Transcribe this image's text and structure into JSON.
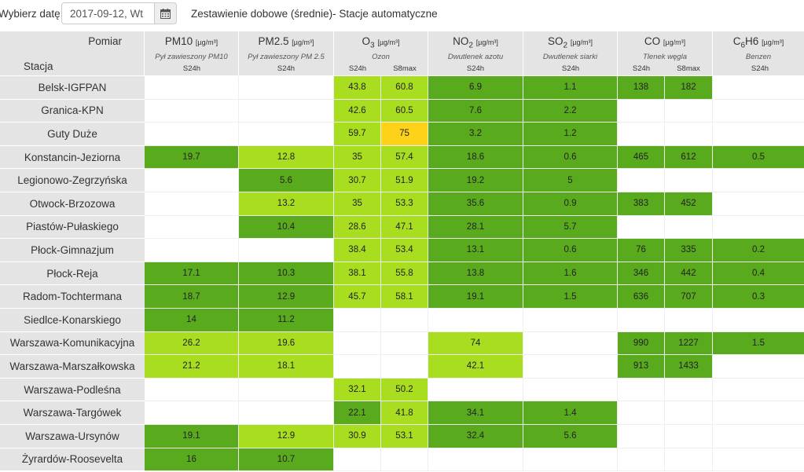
{
  "toolbar": {
    "date_label": "Wybierz datę:",
    "date_value": "2017-09-12, Wt",
    "calendar_icon": "calendar-icon",
    "title": "Zestawienie dobowe (średnie)- Stacje automatyczne"
  },
  "table": {
    "pomiar_label": "Pomiar",
    "stacja_label": "Stacja",
    "columns": [
      {
        "name_main": "PM10",
        "name_sub": "",
        "name_rest": "",
        "unit": "[µg/m³]",
        "desc": "Pył zawieszony PM10",
        "subs": [
          "S24h"
        ]
      },
      {
        "name_main": "PM2.5",
        "name_sub": "",
        "name_rest": "",
        "unit": "[µg/m³]",
        "desc": "Pył zawieszony PM 2.5",
        "subs": [
          "S24h"
        ]
      },
      {
        "name_main": "O",
        "name_sub": "3",
        "name_rest": "",
        "unit": "[µg/m³]",
        "desc": "Ozon",
        "subs": [
          "S24h",
          "S8max"
        ]
      },
      {
        "name_main": "NO",
        "name_sub": "2",
        "name_rest": "",
        "unit": "[µg/m³]",
        "desc": "Dwutlenek azotu",
        "subs": [
          "S24h"
        ]
      },
      {
        "name_main": "SO",
        "name_sub": "2",
        "name_rest": "",
        "unit": "[µg/m³]",
        "desc": "Dwutlenek siarki",
        "subs": [
          "S24h"
        ]
      },
      {
        "name_main": "CO",
        "name_sub": "",
        "name_rest": "",
        "unit": "[µg/m³]",
        "desc": "Tlenek węgla",
        "subs": [
          "S24h",
          "S8max"
        ]
      },
      {
        "name_main": "C",
        "name_sub": "6",
        "name_rest": "H6",
        "unit": "[µg/m³]",
        "desc": "Benzen",
        "subs": [
          "S24h"
        ]
      }
    ],
    "colors": {
      "dg": "#5aaa1e",
      "lg": "#a8dd20",
      "yl": "#ffd21a"
    },
    "rows": [
      {
        "station": "Belsk-IGFPAN",
        "cells": [
          [
            "",
            ""
          ],
          [
            "",
            ""
          ],
          [
            "43.8",
            "lg"
          ],
          [
            "60.8",
            "lg"
          ],
          [
            "6.9",
            "dg"
          ],
          [
            "1.1",
            "dg"
          ],
          [
            "138",
            "dg"
          ],
          [
            "182",
            "dg"
          ],
          [
            "",
            ""
          ]
        ]
      },
      {
        "station": "Granica-KPN",
        "cells": [
          [
            "",
            ""
          ],
          [
            "",
            ""
          ],
          [
            "42.6",
            "lg"
          ],
          [
            "60.5",
            "lg"
          ],
          [
            "7.6",
            "dg"
          ],
          [
            "2.2",
            "dg"
          ],
          [
            "",
            ""
          ],
          [
            "",
            ""
          ],
          [
            "",
            ""
          ]
        ]
      },
      {
        "station": "Guty Duże",
        "cells": [
          [
            "",
            ""
          ],
          [
            "",
            ""
          ],
          [
            "59.7",
            "lg"
          ],
          [
            "75",
            "yl"
          ],
          [
            "3.2",
            "dg"
          ],
          [
            "1.2",
            "dg"
          ],
          [
            "",
            ""
          ],
          [
            "",
            ""
          ],
          [
            "",
            ""
          ]
        ]
      },
      {
        "station": "Konstancin-Jeziorna",
        "cells": [
          [
            "19.7",
            "dg"
          ],
          [
            "12.8",
            "lg"
          ],
          [
            "35",
            "lg"
          ],
          [
            "57.4",
            "lg"
          ],
          [
            "18.6",
            "dg"
          ],
          [
            "0.6",
            "dg"
          ],
          [
            "465",
            "dg"
          ],
          [
            "612",
            "dg"
          ],
          [
            "0.5",
            "dg"
          ]
        ]
      },
      {
        "station": "Legionowo-Zegrzyńska",
        "cells": [
          [
            "",
            ""
          ],
          [
            "5.6",
            "dg"
          ],
          [
            "30.7",
            "lg"
          ],
          [
            "51.9",
            "lg"
          ],
          [
            "19.2",
            "dg"
          ],
          [
            "5",
            "dg"
          ],
          [
            "",
            ""
          ],
          [
            "",
            ""
          ],
          [
            "",
            ""
          ]
        ]
      },
      {
        "station": "Otwock-Brzozowa",
        "cells": [
          [
            "",
            ""
          ],
          [
            "13.2",
            "lg"
          ],
          [
            "35",
            "lg"
          ],
          [
            "53.3",
            "lg"
          ],
          [
            "35.6",
            "dg"
          ],
          [
            "0.9",
            "dg"
          ],
          [
            "383",
            "dg"
          ],
          [
            "452",
            "dg"
          ],
          [
            "",
            ""
          ]
        ]
      },
      {
        "station": "Piastów-Pułaskiego",
        "cells": [
          [
            "",
            ""
          ],
          [
            "10.4",
            "dg"
          ],
          [
            "28.6",
            "lg"
          ],
          [
            "47.1",
            "lg"
          ],
          [
            "28.1",
            "dg"
          ],
          [
            "5.7",
            "dg"
          ],
          [
            "",
            ""
          ],
          [
            "",
            ""
          ],
          [
            "",
            ""
          ]
        ]
      },
      {
        "station": "Płock-Gimnazjum",
        "cells": [
          [
            "",
            ""
          ],
          [
            "",
            ""
          ],
          [
            "38.4",
            "lg"
          ],
          [
            "53.4",
            "lg"
          ],
          [
            "13.1",
            "dg"
          ],
          [
            "0.6",
            "dg"
          ],
          [
            "76",
            "dg"
          ],
          [
            "335",
            "dg"
          ],
          [
            "0.2",
            "dg"
          ]
        ]
      },
      {
        "station": "Płock-Reja",
        "cells": [
          [
            "17.1",
            "dg"
          ],
          [
            "10.3",
            "dg"
          ],
          [
            "38.1",
            "lg"
          ],
          [
            "55.8",
            "lg"
          ],
          [
            "13.8",
            "dg"
          ],
          [
            "1.6",
            "dg"
          ],
          [
            "346",
            "dg"
          ],
          [
            "442",
            "dg"
          ],
          [
            "0.4",
            "dg"
          ]
        ]
      },
      {
        "station": "Radom-Tochtermana",
        "cells": [
          [
            "18.7",
            "dg"
          ],
          [
            "12.9",
            "dg"
          ],
          [
            "45.7",
            "lg"
          ],
          [
            "58.1",
            "lg"
          ],
          [
            "19.1",
            "dg"
          ],
          [
            "1.5",
            "dg"
          ],
          [
            "636",
            "dg"
          ],
          [
            "707",
            "dg"
          ],
          [
            "0.3",
            "dg"
          ]
        ]
      },
      {
        "station": "Siedlce-Konarskiego",
        "cells": [
          [
            "14",
            "dg"
          ],
          [
            "11.2",
            "dg"
          ],
          [
            "",
            ""
          ],
          [
            "",
            ""
          ],
          [
            "",
            ""
          ],
          [
            "",
            ""
          ],
          [
            "",
            ""
          ],
          [
            "",
            ""
          ],
          [
            "",
            ""
          ]
        ]
      },
      {
        "station": "Warszawa-Komunikacyjna",
        "cells": [
          [
            "26.2",
            "lg"
          ],
          [
            "19.6",
            "lg"
          ],
          [
            "",
            ""
          ],
          [
            "",
            ""
          ],
          [
            "74",
            "lg"
          ],
          [
            "",
            ""
          ],
          [
            "990",
            "dg"
          ],
          [
            "1227",
            "dg"
          ],
          [
            "1.5",
            "dg"
          ]
        ]
      },
      {
        "station": "Warszawa-Marszałkowska",
        "cells": [
          [
            "21.2",
            "lg"
          ],
          [
            "18.1",
            "lg"
          ],
          [
            "",
            ""
          ],
          [
            "",
            ""
          ],
          [
            "42.1",
            "lg"
          ],
          [
            "",
            ""
          ],
          [
            "913",
            "dg"
          ],
          [
            "1433",
            "dg"
          ],
          [
            "",
            ""
          ]
        ]
      },
      {
        "station": "Warszawa-Podleśna",
        "cells": [
          [
            "",
            ""
          ],
          [
            "",
            ""
          ],
          [
            "32.1",
            "lg"
          ],
          [
            "50.2",
            "lg"
          ],
          [
            "",
            ""
          ],
          [
            "",
            ""
          ],
          [
            "",
            ""
          ],
          [
            "",
            ""
          ],
          [
            "",
            ""
          ]
        ]
      },
      {
        "station": "Warszawa-Targówek",
        "cells": [
          [
            "",
            ""
          ],
          [
            "",
            ""
          ],
          [
            "22.1",
            "dg"
          ],
          [
            "41.8",
            "lg"
          ],
          [
            "34.1",
            "dg"
          ],
          [
            "1.4",
            "dg"
          ],
          [
            "",
            ""
          ],
          [
            "",
            ""
          ],
          [
            "",
            ""
          ]
        ]
      },
      {
        "station": "Warszawa-Ursynów",
        "cells": [
          [
            "19.1",
            "dg"
          ],
          [
            "12.9",
            "lg"
          ],
          [
            "30.9",
            "lg"
          ],
          [
            "53.1",
            "lg"
          ],
          [
            "32.4",
            "dg"
          ],
          [
            "5.6",
            "dg"
          ],
          [
            "",
            ""
          ],
          [
            "",
            ""
          ],
          [
            "",
            ""
          ]
        ]
      },
      {
        "station": "Żyrardów-Roosevelta",
        "cells": [
          [
            "16",
            "dg"
          ],
          [
            "10.7",
            "dg"
          ],
          [
            "",
            ""
          ],
          [
            "",
            ""
          ],
          [
            "",
            ""
          ],
          [
            "",
            ""
          ],
          [
            "",
            ""
          ],
          [
            "",
            ""
          ],
          [
            "",
            ""
          ]
        ]
      }
    ]
  }
}
